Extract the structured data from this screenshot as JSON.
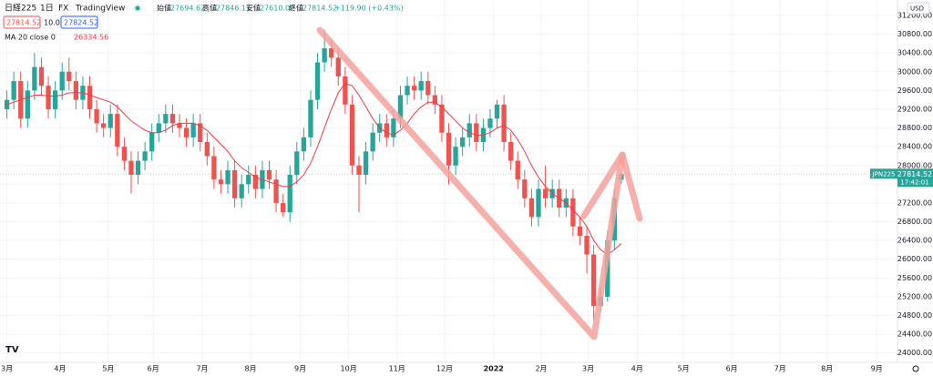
{
  "header": {
    "symbol": "日経225",
    "interval": "1日",
    "exchange": "FX",
    "source": "TradingView",
    "ohlc_labels": [
      "始値",
      "高値",
      "安値",
      "終値"
    ],
    "change": "+119.90 (+0.43%)",
    "spread": "10.00",
    "ask": "27824.52",
    "currency": "USD"
  },
  "chart_data": {
    "type": "candlestick",
    "categories": [
      null,
      null,
      null,
      null,
      null,
      null,
      null,
      null,
      null,
      null,
      null,
      null,
      null,
      null,
      null,
      null,
      null,
      null,
      null,
      null,
      null,
      null,
      null,
      null,
      null,
      null,
      null,
      null,
      null,
      null,
      null,
      null,
      null,
      null,
      null,
      null,
      null,
      null,
      null,
      null,
      null,
      null,
      null,
      null,
      null,
      null,
      null,
      null,
      null,
      null,
      null,
      null,
      null,
      null,
      null,
      null,
      null,
      null,
      null,
      null,
      null,
      null,
      null,
      null,
      null,
      null,
      null,
      null,
      null,
      null,
      null,
      null,
      null,
      null,
      null,
      null,
      null,
      null,
      null,
      null,
      null,
      null,
      null,
      null,
      null,
      null,
      null,
      null,
      null,
      null
    ],
    "open": [
      29200,
      29400,
      29800,
      29000,
      29600,
      30100,
      29700,
      29200,
      29600,
      30000,
      29800,
      29400,
      29700,
      29200,
      28900,
      28800,
      29100,
      28400,
      28100,
      27800,
      28100,
      28300,
      28700,
      28900,
      29100,
      28900,
      28800,
      28600,
      28900,
      28500,
      28200,
      27700,
      27600,
      27900,
      27300,
      27600,
      27800,
      27500,
      27900,
      27700,
      27200,
      27000,
      27800,
      28300,
      28600,
      29400,
      30200,
      30500,
      30300,
      29900,
      29300,
      28000,
      27800,
      28300,
      28700,
      28900,
      28600,
      29000,
      29500,
      29700,
      29600,
      29800,
      29500,
      29300,
      28700,
      28000,
      28400,
      28600,
      28900,
      28500,
      28800,
      29000,
      29300,
      28500,
      28100,
      27700,
      27300,
      26900,
      27500,
      27300,
      27500,
      27100,
      27300,
      26700,
      26500,
      26100,
      25000,
      25200,
      26400,
      27694.62
    ],
    "high": [
      29600,
      30000,
      30000,
      29800,
      30400,
      30300,
      29900,
      29800,
      30200,
      30300,
      30000,
      29900,
      29900,
      29400,
      29100,
      29300,
      29300,
      28600,
      28300,
      28300,
      28500,
      28900,
      29100,
      29300,
      29300,
      29100,
      29000,
      29100,
      29100,
      28700,
      28400,
      27900,
      28100,
      28100,
      27800,
      28000,
      28000,
      28100,
      28100,
      27900,
      27400,
      28000,
      28500,
      28800,
      29600,
      30400,
      30900,
      30700,
      30500,
      30100,
      29500,
      28200,
      28500,
      28900,
      29100,
      29100,
      29200,
      29700,
      29900,
      29900,
      30000,
      30000,
      29700,
      29500,
      28900,
      28600,
      28800,
      29100,
      29100,
      29000,
      29200,
      29400,
      29500,
      28700,
      28300,
      27900,
      27500,
      27700,
      28000,
      27700,
      27700,
      27500,
      27500,
      26900,
      26700,
      26300,
      25400,
      26600,
      27500,
      27846.11
    ],
    "low": [
      29000,
      29200,
      28800,
      28800,
      29400,
      29500,
      29000,
      29000,
      29400,
      29600,
      29200,
      29200,
      29000,
      28700,
      28600,
      28600,
      28200,
      27900,
      27400,
      27600,
      27900,
      28100,
      28500,
      28700,
      28700,
      28600,
      28400,
      28400,
      28300,
      28000,
      27500,
      27400,
      27400,
      27100,
      27100,
      27400,
      27300,
      27300,
      27500,
      27000,
      26900,
      26800,
      27600,
      28100,
      28400,
      29200,
      30000,
      30100,
      29700,
      29100,
      27800,
      27000,
      27600,
      28100,
      28500,
      28400,
      28400,
      28800,
      29300,
      29400,
      29400,
      29300,
      29100,
      28500,
      27600,
      27800,
      28200,
      28400,
      28300,
      28300,
      28600,
      28800,
      28300,
      27900,
      27500,
      27100,
      26700,
      26700,
      27100,
      27100,
      26900,
      26900,
      26500,
      26300,
      25700,
      24700,
      24900,
      25100,
      26200,
      27610.02
    ],
    "close": [
      29400,
      29800,
      29000,
      29600,
      30100,
      29700,
      29200,
      29600,
      30000,
      29800,
      29400,
      29700,
      29200,
      28900,
      28800,
      29100,
      28400,
      28100,
      27800,
      28100,
      28300,
      28700,
      28900,
      29100,
      28900,
      28800,
      28600,
      28900,
      28500,
      28200,
      27700,
      27600,
      27900,
      27300,
      27600,
      27800,
      27500,
      27900,
      27700,
      27200,
      27000,
      27800,
      28300,
      28600,
      29400,
      30200,
      30500,
      30300,
      29900,
      29300,
      28000,
      27800,
      28300,
      28700,
      28900,
      28600,
      29000,
      29500,
      29700,
      29600,
      29800,
      29500,
      29300,
      28700,
      28000,
      28400,
      28600,
      28900,
      28500,
      28800,
      29000,
      29300,
      28500,
      28100,
      27700,
      27300,
      26900,
      27500,
      27300,
      27500,
      27100,
      27300,
      26700,
      26500,
      26100,
      25000,
      25200,
      26400,
      27300,
      27814.52
    ],
    "up_color": "#26a69a",
    "down_color": "#ef5350",
    "ma": {
      "name": "MA 20 close 0",
      "color": "#f23645",
      "values": [
        29300,
        29350,
        29400,
        29450,
        29500,
        29500,
        29480,
        29480,
        29500,
        29550,
        29550,
        29550,
        29500,
        29450,
        29400,
        29350,
        29250,
        29100,
        28950,
        28850,
        28750,
        28700,
        28700,
        28750,
        28850,
        28900,
        28900,
        28900,
        28850,
        28750,
        28600,
        28450,
        28300,
        28100,
        27950,
        27850,
        27750,
        27700,
        27650,
        27600,
        27550,
        27550,
        27650,
        27800,
        28050,
        28400,
        28800,
        29200,
        29550,
        29750,
        29700,
        29500,
        29250,
        29000,
        28800,
        28700,
        28650,
        28750,
        28900,
        29100,
        29250,
        29350,
        29350,
        29250,
        29100,
        28950,
        28800,
        28700,
        28650,
        28650,
        28700,
        28800,
        28850,
        28750,
        28550,
        28300,
        28000,
        27750,
        27550,
        27400,
        27300,
        27200,
        27050,
        26900,
        26700,
        26400,
        26200,
        26100,
        26200,
        26334.56
      ]
    },
    "last_label": "JPN225",
    "last_time": "17:42:01",
    "xlim": [
      -1,
      129
    ],
    "xticks": [
      {
        "value": 0,
        "label": "3月"
      },
      {
        "value": 7.7,
        "label": "4月"
      },
      {
        "value": 14.7,
        "label": "5月"
      },
      {
        "value": 21.2,
        "label": "6月"
      },
      {
        "value": 28.3,
        "label": "7月"
      },
      {
        "value": 35.3,
        "label": "8月"
      },
      {
        "value": 42.5,
        "label": "9月"
      },
      {
        "value": 49.5,
        "label": "10月"
      },
      {
        "value": 56.5,
        "label": "11月"
      },
      {
        "value": 63.4,
        "label": "12月"
      },
      {
        "value": 70.5,
        "label": "2022"
      },
      {
        "value": 77.4,
        "label": "2月"
      },
      {
        "value": 84.2,
        "label": "3月"
      },
      {
        "value": 91.3,
        "label": "4月"
      },
      {
        "value": 98,
        "label": "5月"
      },
      {
        "value": 105,
        "label": "6月"
      },
      {
        "value": 112,
        "label": "7月"
      },
      {
        "value": 118.8,
        "label": "8月"
      },
      {
        "value": 126,
        "label": "9月"
      }
    ],
    "ylim": [
      23800,
      31530
    ],
    "yticks": [
      {
        "value": 31200,
        "label": "31200.00"
      },
      {
        "value": 30800,
        "label": "30800.00"
      },
      {
        "value": 30400,
        "label": "30400.00"
      },
      {
        "value": 30000,
        "label": "30000.00"
      },
      {
        "value": 29600,
        "label": "29600.00"
      },
      {
        "value": 29200,
        "label": "29200.00"
      },
      {
        "value": 28800,
        "label": "28800.00"
      },
      {
        "value": 28400,
        "label": "28400.00"
      },
      {
        "value": 28000,
        "label": "28000.00"
      },
      {
        "value": 27600,
        "label": "27600.00"
      },
      {
        "value": 27200,
        "label": "27200.00"
      },
      {
        "value": 26800,
        "label": "26800.00"
      },
      {
        "value": 26400,
        "label": "26400.00"
      },
      {
        "value": 26000,
        "label": "26000.00"
      },
      {
        "value": 25600,
        "label": "25600.00"
      },
      {
        "value": 25200,
        "label": "25200.00"
      },
      {
        "value": 24800,
        "label": "24800.00"
      },
      {
        "value": 24400,
        "label": "24400.00"
      },
      {
        "value": 24000,
        "label": "24000.00"
      }
    ],
    "grid": true
  }
}
